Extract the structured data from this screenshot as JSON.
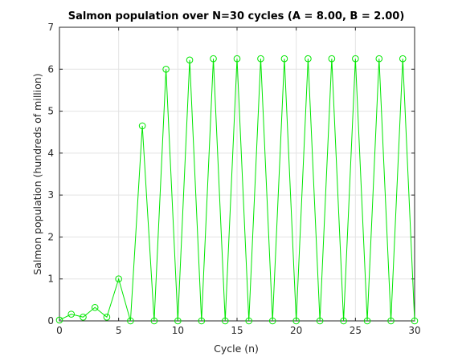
{
  "chart_data": {
    "type": "line",
    "title": "Salmon population over N=30 cycles (A = 8.00, B = 2.00)",
    "xlabel": "Cycle (n)",
    "ylabel": "Salmon population (hundreds of million)",
    "xlim": [
      0,
      30
    ],
    "ylim": [
      0,
      7
    ],
    "xticks": [
      0,
      5,
      10,
      15,
      20,
      25,
      30
    ],
    "yticks": [
      0,
      1,
      2,
      3,
      4,
      5,
      6,
      7
    ],
    "grid": true,
    "line_color": "#00e600",
    "marker": "circle",
    "x": [
      0,
      1,
      2,
      3,
      4,
      5,
      6,
      7,
      8,
      9,
      10,
      11,
      12,
      13,
      14,
      15,
      16,
      17,
      18,
      19,
      20,
      21,
      22,
      23,
      24,
      25,
      26,
      27,
      28,
      29,
      30
    ],
    "y": [
      0.02,
      0.16,
      0.09,
      0.32,
      0.09,
      1.0,
      0.0,
      4.65,
      0.0,
      6.0,
      0.0,
      6.22,
      0.0,
      6.25,
      0.0,
      6.25,
      0.0,
      6.25,
      0.0,
      6.25,
      0.0,
      6.25,
      0.0,
      6.25,
      0.0,
      6.25,
      0.0,
      6.25,
      0.0,
      6.25,
      0.0
    ]
  }
}
